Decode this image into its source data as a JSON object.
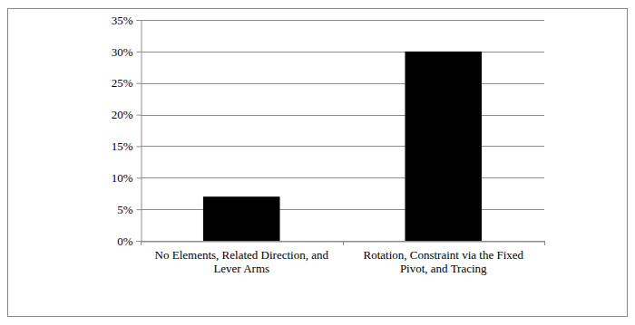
{
  "chart_data": {
    "type": "bar",
    "categories": [
      "No Elements, Related Direction, and Lever Arms",
      "Rotation, Constraint via the Fixed Pivot, and Tracing"
    ],
    "values": [
      7,
      30
    ],
    "color": "#000000",
    "ylim": [
      0,
      35
    ],
    "yticks": [
      {
        "value": 0,
        "label": "0%"
      },
      {
        "value": 5,
        "label": "5%"
      },
      {
        "value": 10,
        "label": "10%"
      },
      {
        "value": 15,
        "label": "15%"
      },
      {
        "value": 20,
        "label": "20%"
      },
      {
        "value": 25,
        "label": "25%"
      },
      {
        "value": 30,
        "label": "30%"
      },
      {
        "value": 35,
        "label": "35%"
      }
    ],
    "grid": true
  }
}
